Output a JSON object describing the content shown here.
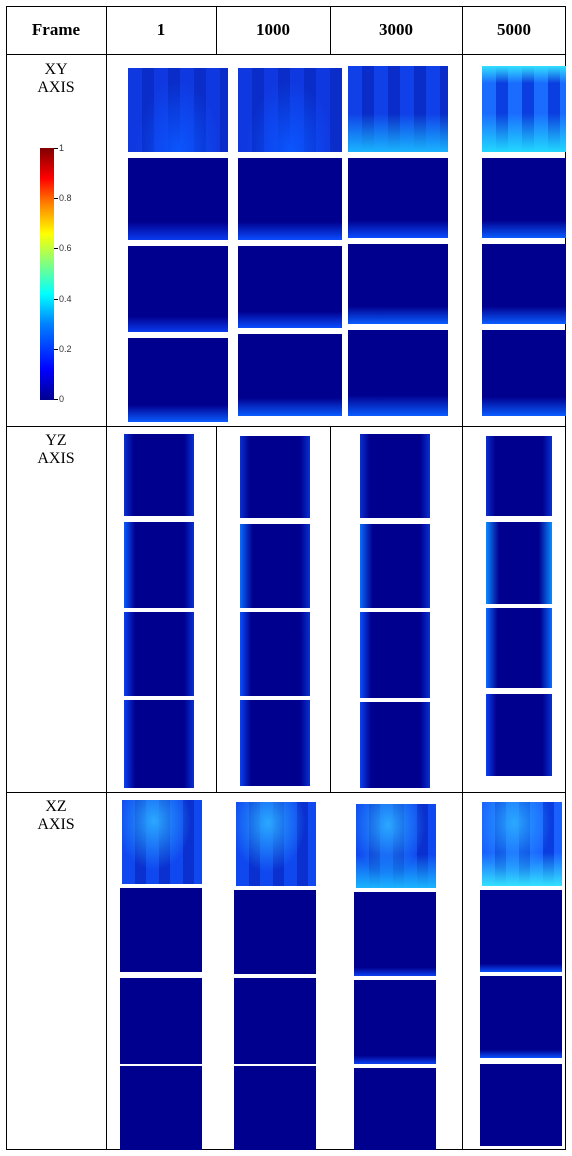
{
  "table": {
    "header": [
      "Frame",
      "1",
      "1000",
      "3000",
      "5000"
    ],
    "rows": [
      {
        "line1": "XY",
        "line2": "AXIS"
      },
      {
        "line1": "YZ",
        "line2": "AXIS"
      },
      {
        "line1": "XZ",
        "line2": "AXIS"
      }
    ]
  },
  "colorbar": {
    "ticks": [
      "1",
      "0.8",
      "0.6",
      "0.4",
      "0.2",
      "0"
    ]
  },
  "colors": {
    "low": "#00008f",
    "mid": "#0000ff",
    "bright": "#00ffff"
  }
}
